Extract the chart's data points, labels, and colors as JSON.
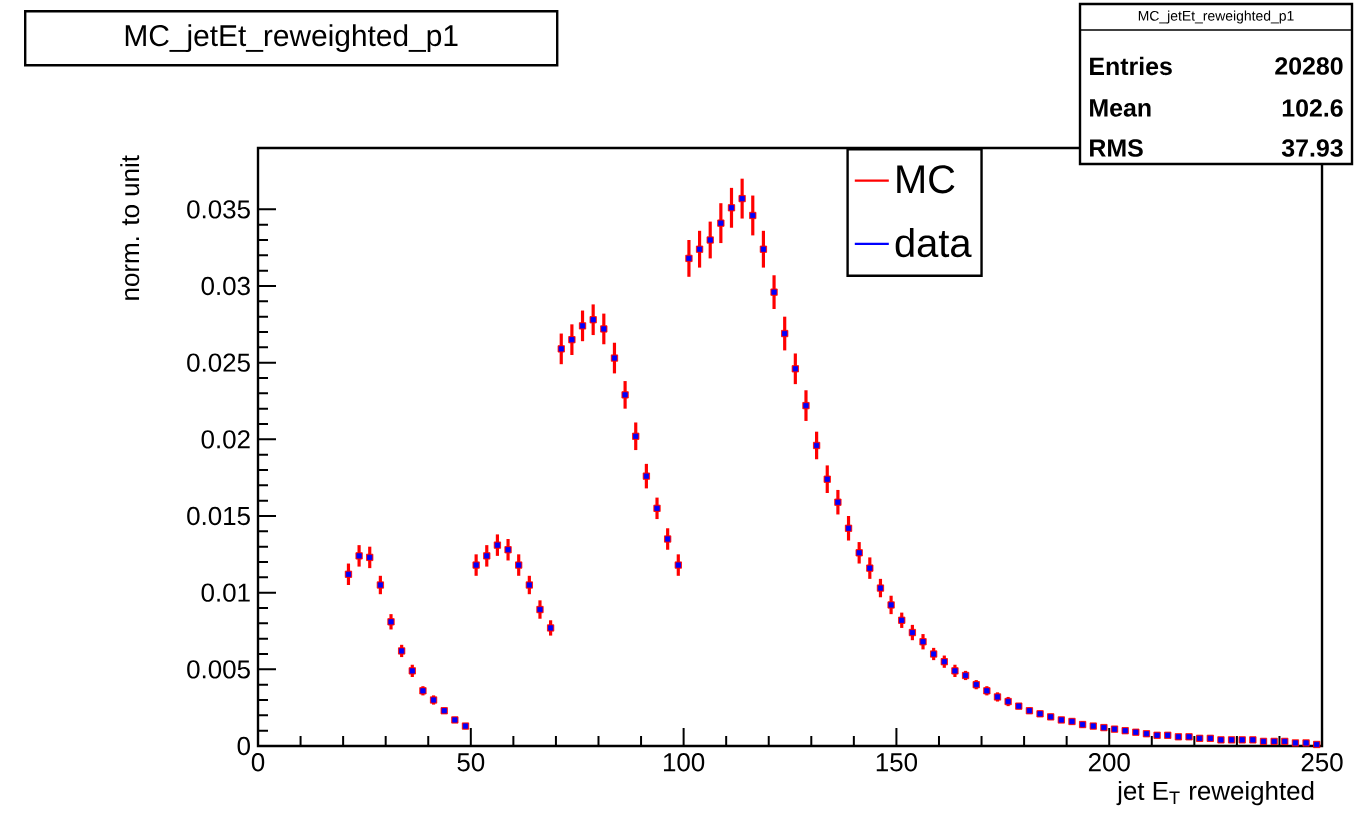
{
  "chart_data": {
    "type": "scatter",
    "title": "MC_jetEt_reweighted_p1",
    "xlabel": "jet E$_{T}$ reweighted",
    "ylabel": "norm. to unit",
    "annotations": [
      "MC_jetEt_reweighted_p1",
      "Entries",
      "20280",
      "Mean",
      "102.6",
      "RMS",
      "37.93"
    ],
    "x": [
      21.25,
      23.75,
      26.25,
      28.75,
      31.25,
      33.75,
      36.25,
      38.75,
      41.25,
      43.75,
      46.25,
      48.75,
      51.25,
      53.75,
      56.25,
      58.75,
      61.25,
      63.75,
      66.25,
      68.75,
      71.25,
      73.75,
      76.25,
      78.75,
      81.25,
      83.75,
      86.25,
      88.75,
      91.25,
      93.75,
      96.25,
      98.75,
      101.25,
      103.75,
      106.25,
      108.75,
      111.25,
      113.75,
      116.25,
      118.75,
      121.25,
      123.75,
      126.25,
      128.75,
      131.25,
      133.75,
      136.25,
      138.75,
      141.25,
      143.75,
      146.25,
      148.75,
      151.25,
      153.75,
      156.25,
      158.75,
      161.25,
      163.75,
      166.25,
      168.75,
      171.25,
      173.75,
      176.25,
      178.75,
      181.25,
      183.75,
      186.25,
      188.75,
      191.25,
      193.75,
      196.25,
      198.75,
      201.25,
      203.75,
      206.25,
      208.75,
      211.25,
      213.75,
      216.25,
      218.75,
      221.25,
      223.75,
      226.25,
      228.75,
      231.25,
      233.75,
      236.25,
      238.75,
      241.25,
      243.75,
      246.25,
      248.75
    ],
    "series": [
      {
        "name": "MC",
        "color": "#ff0000",
        "values": [
          0.0112,
          0.0124,
          0.0123,
          0.0105,
          0.0081,
          0.0062,
          0.0049,
          0.0036,
          0.003,
          0.0023,
          0.0017,
          0.0013,
          0.0118,
          0.0124,
          0.0131,
          0.0128,
          0.0118,
          0.0105,
          0.0089,
          0.0077,
          0.0259,
          0.0265,
          0.0274,
          0.0278,
          0.0272,
          0.0253,
          0.0229,
          0.0202,
          0.0176,
          0.0155,
          0.0135,
          0.0118,
          0.0318,
          0.0324,
          0.033,
          0.0341,
          0.0351,
          0.0357,
          0.0346,
          0.0324,
          0.0296,
          0.0269,
          0.0246,
          0.0222,
          0.0196,
          0.0174,
          0.0159,
          0.0142,
          0.0126,
          0.0116,
          0.0103,
          0.0092,
          0.0082,
          0.0074,
          0.0068,
          0.006,
          0.0055,
          0.0049,
          0.0046,
          0.004,
          0.0036,
          0.0032,
          0.0029,
          0.0026,
          0.0023,
          0.0021,
          0.0019,
          0.0017,
          0.0016,
          0.0014,
          0.0013,
          0.0012,
          0.0011,
          0.001,
          0.0009,
          0.0008,
          0.0007,
          0.0007,
          0.0006,
          0.0006,
          0.0005,
          0.0005,
          0.0004,
          0.0004,
          0.0004,
          0.0004,
          0.0003,
          0.0003,
          0.0003,
          0.0002,
          0.0002,
          0.0001
        ],
        "errors": [
          0.0007,
          0.0007,
          0.0007,
          0.0006,
          0.0005,
          0.0004,
          0.0004,
          0.0003,
          0.0003,
          0.0002,
          0.0002,
          0.0002,
          0.0007,
          0.0007,
          0.0007,
          0.0007,
          0.0007,
          0.0006,
          0.0006,
          0.0005,
          0.001,
          0.001,
          0.001,
          0.001,
          0.001,
          0.001,
          0.0009,
          0.0009,
          0.0008,
          0.0007,
          0.0007,
          0.0007,
          0.0012,
          0.0012,
          0.0012,
          0.0013,
          0.0013,
          0.0013,
          0.0013,
          0.0012,
          0.0011,
          0.0011,
          0.001,
          0.001,
          0.0009,
          0.0009,
          0.0008,
          0.0008,
          0.0007,
          0.0007,
          0.0006,
          0.0006,
          0.0005,
          0.0005,
          0.0005,
          0.0004,
          0.0004,
          0.0004,
          0.0003,
          0.0003,
          0.0003,
          0.0003,
          0.0003,
          0.0002,
          0.0002,
          0.0002,
          0.0002,
          0.0002,
          0.0002,
          0.0002,
          0.0002,
          0.0001,
          0.0001,
          0.0001,
          0.0001,
          0.0001,
          0.0001,
          0.0001,
          0.0001,
          0.0001,
          0.0001,
          0.0001,
          0.0001,
          0.0001,
          0.0001,
          0.0001,
          0.0001,
          0.0001,
          0.0001,
          0.0001,
          0.0001,
          0.0001
        ]
      },
      {
        "name": "data",
        "color": "#0000ff",
        "values": [
          0.0112,
          0.0124,
          0.0123,
          0.0105,
          0.0081,
          0.0062,
          0.0049,
          0.0036,
          0.003,
          0.0023,
          0.0017,
          0.0013,
          0.0118,
          0.0124,
          0.0131,
          0.0128,
          0.0118,
          0.0105,
          0.0089,
          0.0077,
          0.0259,
          0.0265,
          0.0274,
          0.0278,
          0.0272,
          0.0253,
          0.0229,
          0.0202,
          0.0176,
          0.0155,
          0.0135,
          0.0118,
          0.0318,
          0.0324,
          0.033,
          0.0341,
          0.0351,
          0.0357,
          0.0346,
          0.0324,
          0.0296,
          0.0269,
          0.0246,
          0.0222,
          0.0196,
          0.0174,
          0.0159,
          0.0142,
          0.0126,
          0.0116,
          0.0103,
          0.0092,
          0.0082,
          0.0074,
          0.0068,
          0.006,
          0.0055,
          0.0049,
          0.0046,
          0.004,
          0.0036,
          0.0032,
          0.0029,
          0.0026,
          0.0023,
          0.0021,
          0.0019,
          0.0017,
          0.0016,
          0.0014,
          0.0013,
          0.0012,
          0.0011,
          0.001,
          0.0009,
          0.0008,
          0.0007,
          0.0007,
          0.0006,
          0.0006,
          0.0005,
          0.0005,
          0.0004,
          0.0004,
          0.0004,
          0.0004,
          0.0003,
          0.0003,
          0.0003,
          0.0002,
          0.0002,
          0.0001
        ]
      }
    ],
    "xlim": [
      0,
      250
    ],
    "xticks": [
      0,
      50,
      100,
      150,
      200,
      250
    ],
    "ylim": [
      0,
      0.039
    ],
    "yticks": [
      0,
      0.005,
      0.01,
      0.015,
      0.02,
      0.025,
      0.03,
      0.035
    ],
    "marker": "square",
    "legend": "top"
  }
}
